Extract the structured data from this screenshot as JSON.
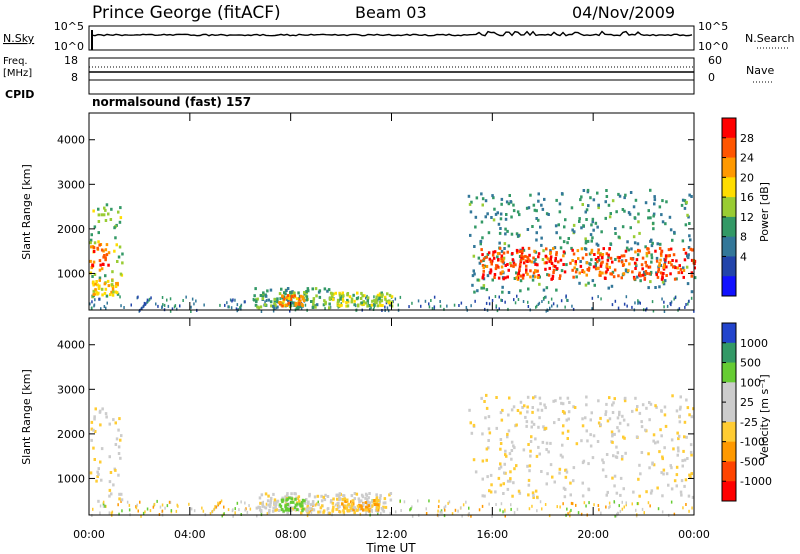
{
  "header": {
    "station": "Prince George (fitACF)",
    "beam": "Beam 03",
    "date": "04/Nov/2009"
  },
  "status_panels": {
    "nsky": {
      "label": "N.Sky",
      "ticks": [
        "10^5",
        "10^0"
      ]
    },
    "nsearch": {
      "label": "N.Search",
      "ticks": [
        "10^5",
        "10^0"
      ]
    },
    "freq": {
      "label_line1": "Freq.",
      "label_line2": "[MHz]",
      "ticks": [
        "18",
        "8"
      ]
    },
    "nave": {
      "label": "Nave",
      "ticks": [
        "60",
        "0"
      ]
    },
    "cpid": {
      "label": "CPID",
      "program": "normalsound (fast) 157"
    }
  },
  "chart_data": [
    {
      "type": "heatmap",
      "name": "power",
      "ylabel": "Slant Range [km]",
      "xlabel": "",
      "xlim": [
        "00:00",
        "00:00"
      ],
      "ylim": [
        180,
        4600
      ],
      "yticks": [
        1000,
        2000,
        3000,
        4000
      ],
      "xticks": [
        "00:00",
        "04:00",
        "08:00",
        "12:00",
        "16:00",
        "20:00",
        "00:00"
      ],
      "colorbar": {
        "label": "Power [dB]",
        "ticks": [
          "28",
          "24",
          "20",
          "16",
          "12",
          "8",
          "4"
        ],
        "colors": [
          "#ff0000",
          "#ff5500",
          "#ff9900",
          "#ffdd00",
          "#99cc33",
          "#339966",
          "#337799",
          "#2244aa",
          "#1111ff"
        ]
      },
      "regions": [
        {
          "t0": 0.0,
          "t1": 1.3,
          "r0": 500,
          "r1": 2600,
          "level": 14
        },
        {
          "t0": 0.0,
          "t1": 0.8,
          "r0": 1100,
          "r1": 1700,
          "level": 26
        },
        {
          "t0": 0.1,
          "t1": 1.1,
          "r0": 550,
          "r1": 900,
          "level": 20
        },
        {
          "t0": 6.5,
          "t1": 9.5,
          "r0": 250,
          "r1": 700,
          "level": 12
        },
        {
          "t0": 7.5,
          "t1": 8.5,
          "r0": 300,
          "r1": 550,
          "level": 22
        },
        {
          "t0": 9.5,
          "t1": 12.0,
          "r0": 300,
          "r1": 600,
          "level": 16
        },
        {
          "t0": 15.0,
          "t1": 24.0,
          "r0": 600,
          "r1": 2900,
          "level": 10
        },
        {
          "t0": 15.5,
          "t1": 24.0,
          "r0": 900,
          "r1": 1600,
          "level": 27
        }
      ]
    },
    {
      "type": "heatmap",
      "name": "velocity",
      "ylabel": "Slant Range [km]",
      "xlabel": "Time UT",
      "xlim": [
        "00:00",
        "00:00"
      ],
      "ylim": [
        180,
        4600
      ],
      "yticks": [
        1000,
        2000,
        3000,
        4000
      ],
      "xticks": [
        "00:00",
        "04:00",
        "08:00",
        "12:00",
        "16:00",
        "20:00",
        "00:00"
      ],
      "colorbar": {
        "label": "Velocity [m s⁻¹]",
        "ticks": [
          "1000",
          "500",
          "100",
          "25",
          "-25",
          "-100",
          "-500",
          "-1000"
        ],
        "colors": [
          "#2244cc",
          "#339966",
          "#66cc33",
          "#cccccc",
          "#cccccc",
          "#ffcc33",
          "#ff9900",
          "#ff4400",
          "#ff0000"
        ]
      },
      "regions": [
        {
          "t0": 0.0,
          "t1": 1.3,
          "r0": 500,
          "r1": 2600,
          "level": 0
        },
        {
          "t0": 6.5,
          "t1": 12.0,
          "r0": 250,
          "r1": 700,
          "level": 0
        },
        {
          "t0": 7.5,
          "t1": 8.5,
          "r0": 300,
          "r1": 600,
          "level": 150
        },
        {
          "t0": 10.0,
          "t1": 11.5,
          "r0": 300,
          "r1": 550,
          "level": -80
        },
        {
          "t0": 15.0,
          "t1": 24.0,
          "r0": 600,
          "r1": 2900,
          "level": 0
        }
      ]
    }
  ]
}
